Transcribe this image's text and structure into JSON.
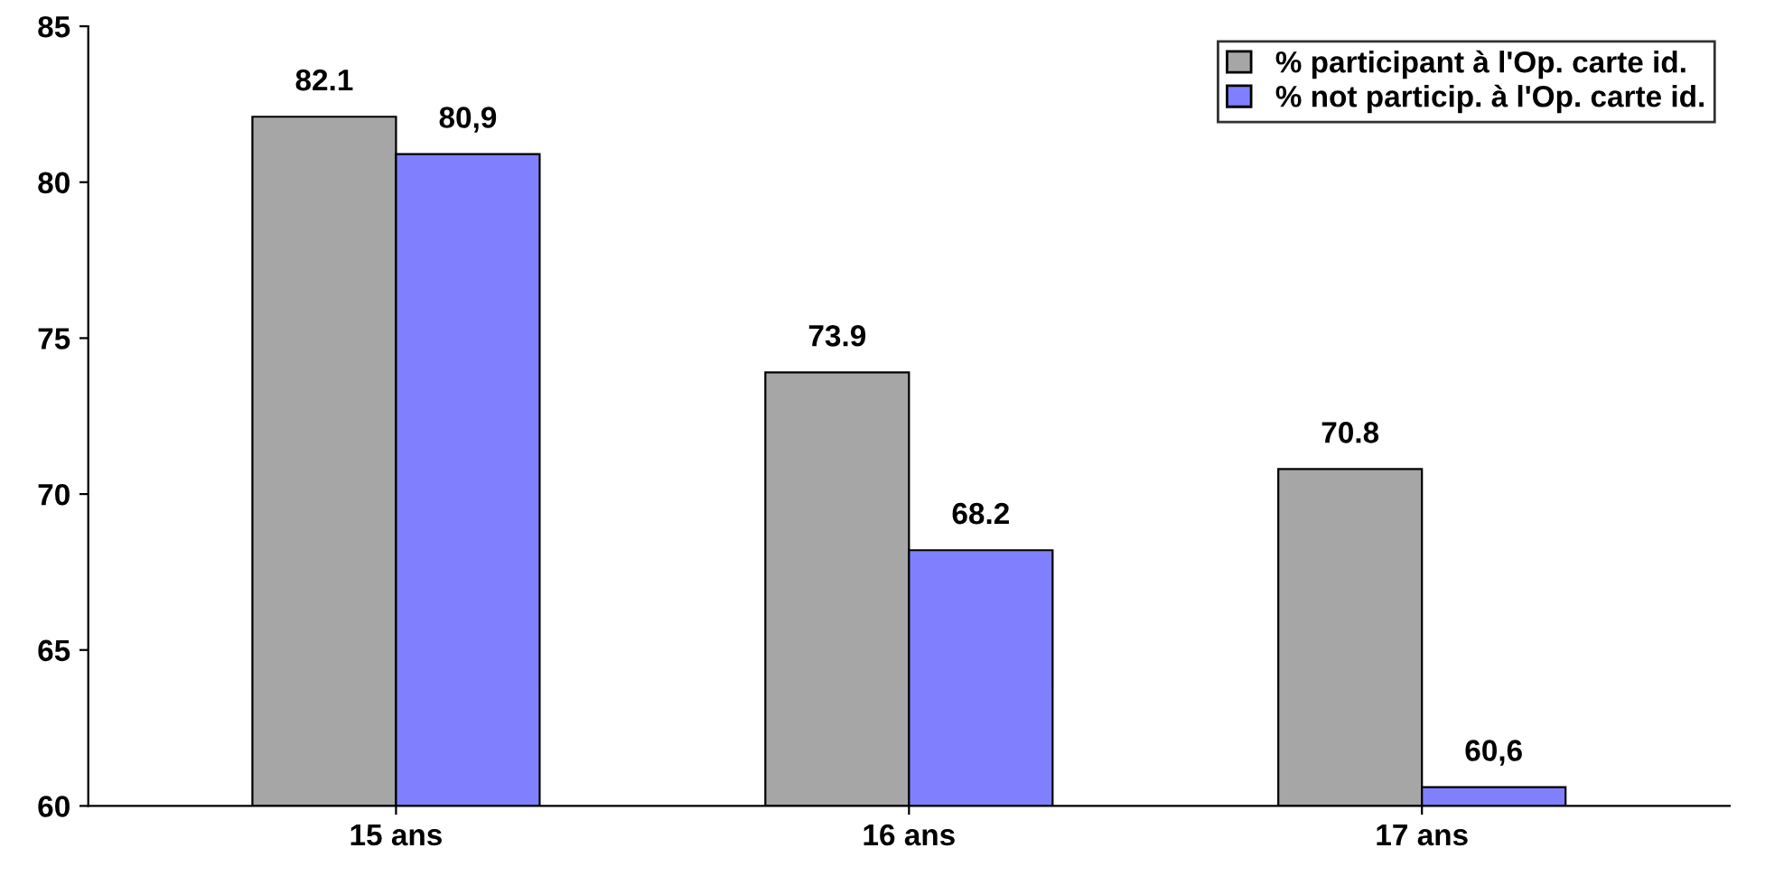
{
  "chart_data": {
    "type": "bar",
    "categories": [
      "15 ans",
      "16 ans",
      "17 ans"
    ],
    "series": [
      {
        "name": "% participant à l'Op. carte id.",
        "color": "#a6a6a6",
        "values": [
          82.1,
          73.9,
          70.8
        ],
        "value_labels": [
          "82.1",
          "73.9",
          "70.8"
        ]
      },
      {
        "name": "% not particip. à l'Op. carte id.",
        "color": "#8080ff",
        "values": [
          80.9,
          68.2,
          60.6
        ],
        "value_labels": [
          "80,9",
          "68.2",
          "60,6"
        ]
      }
    ],
    "ylim": [
      60,
      85
    ],
    "yticks": [
      60,
      65,
      70,
      75,
      80,
      85
    ],
    "grid": false,
    "legend": "top right"
  }
}
